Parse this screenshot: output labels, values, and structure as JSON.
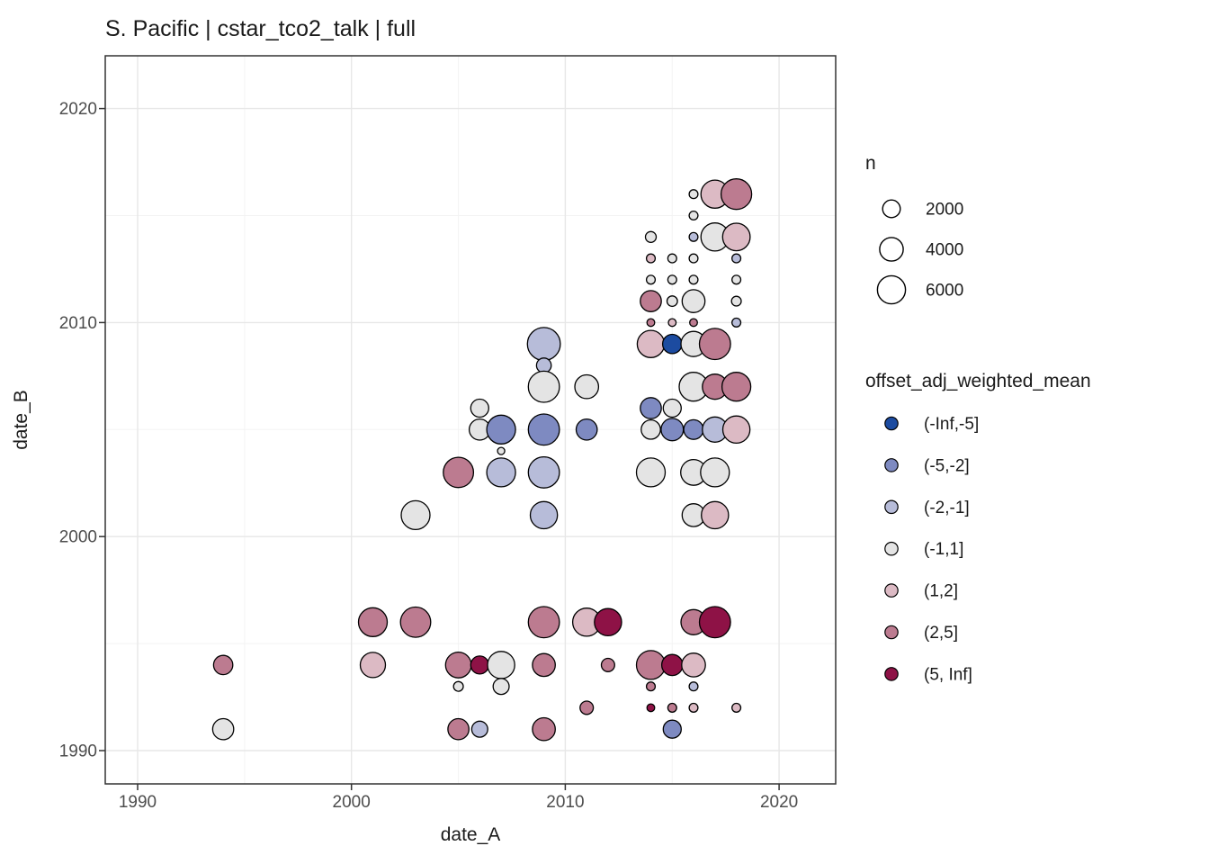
{
  "title": "S. Pacific | cstar_tco2_talk | full",
  "chart_data": {
    "type": "scatter",
    "title": "S. Pacific | cstar_tco2_talk | full",
    "xlabel": "date_A",
    "ylabel": "date_B",
    "xlim": [
      1988.5,
      2022.6
    ],
    "ylim": [
      1988.4,
      2022.5
    ],
    "x_ticks": [
      1990,
      2000,
      2010,
      2020
    ],
    "y_ticks": [
      1990,
      2000,
      2010,
      2020
    ],
    "x_tick_labels": [
      "1990",
      "2000",
      "2010",
      "2020"
    ],
    "y_tick_labels": [
      "2020",
      "2010",
      "2000",
      "1990"
    ],
    "minor_grid_years": [
      1995,
      2005,
      2015
    ],
    "grid": true,
    "panel_colors": {
      "background": "#ffffff",
      "grid_major": "#e7e7e7",
      "grid_minor": "#f3f3f3",
      "border": "#333333",
      "point_stroke": "#000000"
    },
    "size_legend": {
      "title": "n",
      "values": [
        2000,
        4000,
        6000
      ],
      "labels": [
        "2000",
        "4000",
        "6000"
      ]
    },
    "color_legend": {
      "title": "offset_adj_weighted_mean",
      "bins": [
        "(-Inf,-5]",
        "(-5,-2]",
        "(-2,-1]",
        "(-1,1]",
        "(1,2]",
        "(2,5]",
        "(5, Inf]"
      ],
      "colors": [
        "#1c4ba0",
        "#7e8ac1",
        "#b7bcd9",
        "#e4e4e4",
        "#dcbac4",
        "#bc7b90",
        "#8e1246"
      ]
    },
    "points": [
      {
        "x": 2016,
        "y": 2016,
        "n": 300,
        "bin": "(-1,1]"
      },
      {
        "x": 2017,
        "y": 2016,
        "n": 6000,
        "bin": "(1,2]"
      },
      {
        "x": 2018,
        "y": 2016,
        "n": 7200,
        "bin": "(2,5]"
      },
      {
        "x": 2016,
        "y": 2015,
        "n": 300,
        "bin": "(-1,1]"
      },
      {
        "x": 2014,
        "y": 2014,
        "n": 550,
        "bin": "(-1,1]"
      },
      {
        "x": 2016,
        "y": 2014,
        "n": 300,
        "bin": "(-2,-1]"
      },
      {
        "x": 2017,
        "y": 2014,
        "n": 6000,
        "bin": "(-1,1]"
      },
      {
        "x": 2018,
        "y": 2014,
        "n": 5700,
        "bin": "(1,2]"
      },
      {
        "x": 2014,
        "y": 2013,
        "n": 300,
        "bin": "(1,2]"
      },
      {
        "x": 2015,
        "y": 2013,
        "n": 300,
        "bin": "(-1,1]"
      },
      {
        "x": 2016,
        "y": 2013,
        "n": 300,
        "bin": "(-1,1]"
      },
      {
        "x": 2018,
        "y": 2013,
        "n": 300,
        "bin": "(-2,-1]"
      },
      {
        "x": 2014,
        "y": 2012,
        "n": 300,
        "bin": "(-1,1]"
      },
      {
        "x": 2015,
        "y": 2012,
        "n": 300,
        "bin": "(-1,1]"
      },
      {
        "x": 2016,
        "y": 2012,
        "n": 300,
        "bin": "(-1,1]"
      },
      {
        "x": 2018,
        "y": 2012,
        "n": 300,
        "bin": "(-1,1]"
      },
      {
        "x": 2014,
        "y": 2011,
        "n": 3100,
        "bin": "(2,5]"
      },
      {
        "x": 2015,
        "y": 2011,
        "n": 500,
        "bin": "(-1,1]"
      },
      {
        "x": 2016,
        "y": 2011,
        "n": 3700,
        "bin": "(-1,1]"
      },
      {
        "x": 2018,
        "y": 2011,
        "n": 400,
        "bin": "(-1,1]"
      },
      {
        "x": 2014,
        "y": 2010,
        "n": 200,
        "bin": "(2,5]"
      },
      {
        "x": 2015,
        "y": 2010,
        "n": 200,
        "bin": "(1,2]"
      },
      {
        "x": 2016,
        "y": 2010,
        "n": 200,
        "bin": "(2,5]"
      },
      {
        "x": 2018,
        "y": 2010,
        "n": 300,
        "bin": "(-2,-1]"
      },
      {
        "x": 2014,
        "y": 2009,
        "n": 5500,
        "bin": "(1,2]"
      },
      {
        "x": 2015,
        "y": 2009,
        "n": 2500,
        "bin": "(-Inf,-5]"
      },
      {
        "x": 2016,
        "y": 2009,
        "n": 4700,
        "bin": "(-1,1]"
      },
      {
        "x": 2017,
        "y": 2009,
        "n": 7500,
        "bin": "(2,5]"
      },
      {
        "x": 2016,
        "y": 2007,
        "n": 6300,
        "bin": "(-1,1]"
      },
      {
        "x": 2017,
        "y": 2007,
        "n": 4700,
        "bin": "(2,5]"
      },
      {
        "x": 2018,
        "y": 2007,
        "n": 6300,
        "bin": "(2,5]"
      },
      {
        "x": 2014,
        "y": 2006,
        "n": 3100,
        "bin": "(-5,-2]"
      },
      {
        "x": 2015,
        "y": 2006,
        "n": 2100,
        "bin": "(-1,1]"
      },
      {
        "x": 2014,
        "y": 2005,
        "n": 2500,
        "bin": "(-1,1]"
      },
      {
        "x": 2015,
        "y": 2005,
        "n": 3500,
        "bin": "(-5,-2]"
      },
      {
        "x": 2016,
        "y": 2005,
        "n": 2600,
        "bin": "(-5,-2]"
      },
      {
        "x": 2017,
        "y": 2005,
        "n": 4700,
        "bin": "(-2,-1]"
      },
      {
        "x": 2018,
        "y": 2005,
        "n": 5500,
        "bin": "(1,2]"
      },
      {
        "x": 2014,
        "y": 2003,
        "n": 6300,
        "bin": "(-1,1]"
      },
      {
        "x": 2016,
        "y": 2003,
        "n": 4900,
        "bin": "(-1,1]"
      },
      {
        "x": 2017,
        "y": 2003,
        "n": 6300,
        "bin": "(-1,1]"
      },
      {
        "x": 2016,
        "y": 2001,
        "n": 3700,
        "bin": "(-1,1]"
      },
      {
        "x": 2017,
        "y": 2001,
        "n": 5500,
        "bin": "(1,2]"
      },
      {
        "x": 2009,
        "y": 2009,
        "n": 8500,
        "bin": "(-2,-1]"
      },
      {
        "x": 2009,
        "y": 2008,
        "n": 1300,
        "bin": "(-2,-1]"
      },
      {
        "x": 2009,
        "y": 2007,
        "n": 7500,
        "bin": "(-1,1]"
      },
      {
        "x": 2011,
        "y": 2007,
        "n": 4100,
        "bin": "(-1,1]"
      },
      {
        "x": 2006,
        "y": 2006,
        "n": 2100,
        "bin": "(-1,1]"
      },
      {
        "x": 2006,
        "y": 2005,
        "n": 3100,
        "bin": "(-1,1]"
      },
      {
        "x": 2007,
        "y": 2005,
        "n": 6300,
        "bin": "(-5,-2]"
      },
      {
        "x": 2009,
        "y": 2005,
        "n": 7500,
        "bin": "(-5,-2]"
      },
      {
        "x": 2011,
        "y": 2005,
        "n": 3100,
        "bin": "(-5,-2]"
      },
      {
        "x": 2007,
        "y": 2004,
        "n": 150,
        "bin": "(-1,1]"
      },
      {
        "x": 2005,
        "y": 2003,
        "n": 7000,
        "bin": "(2,5]"
      },
      {
        "x": 2007,
        "y": 2003,
        "n": 6300,
        "bin": "(-2,-1]"
      },
      {
        "x": 2009,
        "y": 2003,
        "n": 7500,
        "bin": "(-2,-1]"
      },
      {
        "x": 2003,
        "y": 2001,
        "n": 6300,
        "bin": "(-1,1]"
      },
      {
        "x": 2009,
        "y": 2001,
        "n": 5500,
        "bin": "(-2,-1]"
      },
      {
        "x": 2001,
        "y": 1996,
        "n": 6300,
        "bin": "(2,5]"
      },
      {
        "x": 2003,
        "y": 1996,
        "n": 7000,
        "bin": "(2,5]"
      },
      {
        "x": 2009,
        "y": 1996,
        "n": 7500,
        "bin": "(2,5]"
      },
      {
        "x": 2011,
        "y": 1996,
        "n": 6000,
        "bin": "(1,2]"
      },
      {
        "x": 2012,
        "y": 1996,
        "n": 5500,
        "bin": "(5, Inf]"
      },
      {
        "x": 2016,
        "y": 1996,
        "n": 4700,
        "bin": "(2,5]"
      },
      {
        "x": 2017,
        "y": 1996,
        "n": 7500,
        "bin": "(5, Inf]"
      },
      {
        "x": 1994,
        "y": 1994,
        "n": 2500,
        "bin": "(2,5]"
      },
      {
        "x": 2001,
        "y": 1994,
        "n": 4700,
        "bin": "(1,2]"
      },
      {
        "x": 2005,
        "y": 1994,
        "n": 4900,
        "bin": "(2,5]"
      },
      {
        "x": 2006,
        "y": 1994,
        "n": 2100,
        "bin": "(5, Inf]"
      },
      {
        "x": 2007,
        "y": 1994,
        "n": 5500,
        "bin": "(-1,1]"
      },
      {
        "x": 2009,
        "y": 1994,
        "n": 3700,
        "bin": "(2,5]"
      },
      {
        "x": 2012,
        "y": 1994,
        "n": 1000,
        "bin": "(2,5]"
      },
      {
        "x": 2014,
        "y": 1994,
        "n": 6300,
        "bin": "(2,5]"
      },
      {
        "x": 2015,
        "y": 1994,
        "n": 3100,
        "bin": "(5, Inf]"
      },
      {
        "x": 2016,
        "y": 1994,
        "n": 4100,
        "bin": "(1,2]"
      },
      {
        "x": 2005,
        "y": 1993,
        "n": 400,
        "bin": "(-1,1]"
      },
      {
        "x": 2007,
        "y": 1993,
        "n": 1600,
        "bin": "(-1,1]"
      },
      {
        "x": 2014,
        "y": 1993,
        "n": 300,
        "bin": "(2,5]"
      },
      {
        "x": 2016,
        "y": 1993,
        "n": 300,
        "bin": "(-2,-1]"
      },
      {
        "x": 2011,
        "y": 1992,
        "n": 1000,
        "bin": "(2,5]"
      },
      {
        "x": 2014,
        "y": 1992,
        "n": 200,
        "bin": "(5, Inf]"
      },
      {
        "x": 2015,
        "y": 1992,
        "n": 300,
        "bin": "(2,5]"
      },
      {
        "x": 2016,
        "y": 1992,
        "n": 300,
        "bin": "(1,2]"
      },
      {
        "x": 2018,
        "y": 1992,
        "n": 300,
        "bin": "(1,2]"
      },
      {
        "x": 1994,
        "y": 1991,
        "n": 3100,
        "bin": "(-1,1]"
      },
      {
        "x": 2005,
        "y": 1991,
        "n": 3100,
        "bin": "(2,5]"
      },
      {
        "x": 2006,
        "y": 1991,
        "n": 1600,
        "bin": "(-2,-1]"
      },
      {
        "x": 2009,
        "y": 1991,
        "n": 3700,
        "bin": "(2,5]"
      },
      {
        "x": 2015,
        "y": 1991,
        "n": 2100,
        "bin": "(-5,-2]"
      }
    ]
  },
  "axes": {
    "x": {
      "label": "date_A"
    },
    "y": {
      "label": "date_B"
    }
  }
}
